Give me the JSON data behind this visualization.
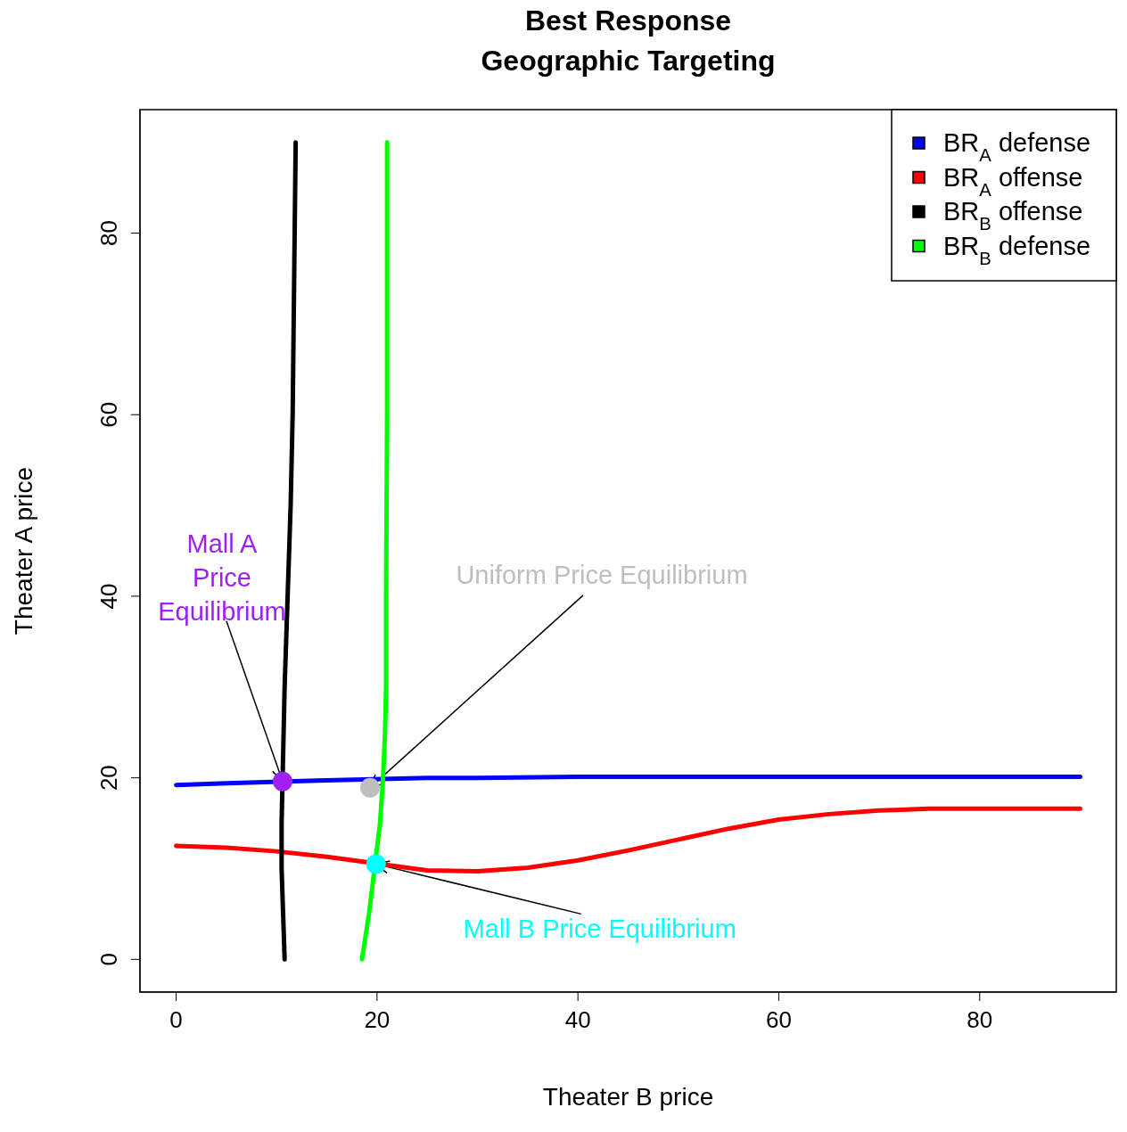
{
  "chart_data": {
    "type": "line",
    "title": "Best Response\nGeographic Targeting",
    "xlabel": "Theater B price",
    "ylabel": "Theater A price",
    "xlim": [
      -3.6,
      93.6
    ],
    "ylim": [
      -3.6,
      93.6
    ],
    "xticks": [
      0,
      20,
      40,
      60,
      80
    ],
    "yticks": [
      0,
      20,
      40,
      60,
      80
    ],
    "legend": "top right",
    "line_style": "solid",
    "series": [
      {
        "name": "BR$_{A}$ defense",
        "color": "#0000ff",
        "x": [
          0,
          5,
          8,
          14,
          25,
          30,
          40,
          50,
          60,
          70,
          80,
          90
        ],
        "values": [
          19.2,
          19.4,
          19.5,
          19.7,
          20,
          20,
          20.1,
          20.1,
          20.1,
          20.1,
          20.1,
          20.1
        ]
      },
      {
        "name": "BR$_{A}$ offense",
        "color": "#ff0000",
        "x": [
          0,
          5,
          10,
          15,
          17,
          23,
          25,
          30,
          35,
          40,
          45,
          50,
          55,
          60,
          65,
          70,
          75,
          80,
          85,
          90
        ],
        "values": [
          12.5,
          12.3,
          11.9,
          11.3,
          11,
          10.1,
          9.8,
          9.7,
          10.1,
          10.9,
          12,
          13.2,
          14.4,
          15.4,
          16,
          16.4,
          16.6,
          16.6,
          16.6,
          16.6
        ]
      },
      {
        "name": "BR$_{B}$ offense",
        "color": "#000000",
        "x": [
          10.8,
          10.5,
          10.5,
          10.7,
          10.8,
          11.1,
          11.4,
          11.6,
          11.7,
          11.8,
          11.9
        ],
        "values": [
          0,
          10,
          15,
          25,
          30,
          40,
          50,
          60,
          70,
          80,
          90
        ]
      },
      {
        "name": "BR$_{B}$ defense",
        "color": "#00ff00",
        "x": [
          18.5,
          19.2,
          20.3,
          20.6,
          20.8,
          20.9,
          20.9,
          21,
          21
        ],
        "values": [
          0,
          5,
          15,
          20,
          25,
          30,
          40,
          60,
          90
        ]
      },
      {
        "type": "scatter",
        "marker": "circle",
        "x": [
          10.6,
          19.3,
          19.9
        ],
        "values": [
          19.6,
          18.9,
          10.5
        ],
        "colors": [
          "#a020f0",
          "#bebebe",
          "#00ffff"
        ]
      }
    ],
    "annotations": [
      {
        "text": "Mall A\nPrice\nEquilibrium",
        "x": 10.6,
        "y": 19.6
      },
      {
        "text": "Uniform Price Equilibrium",
        "x": 19.3,
        "y": 18.9
      },
      {
        "text": "Mall B Price Equilibrium",
        "x": 19.9,
        "y": 10.5
      }
    ]
  }
}
